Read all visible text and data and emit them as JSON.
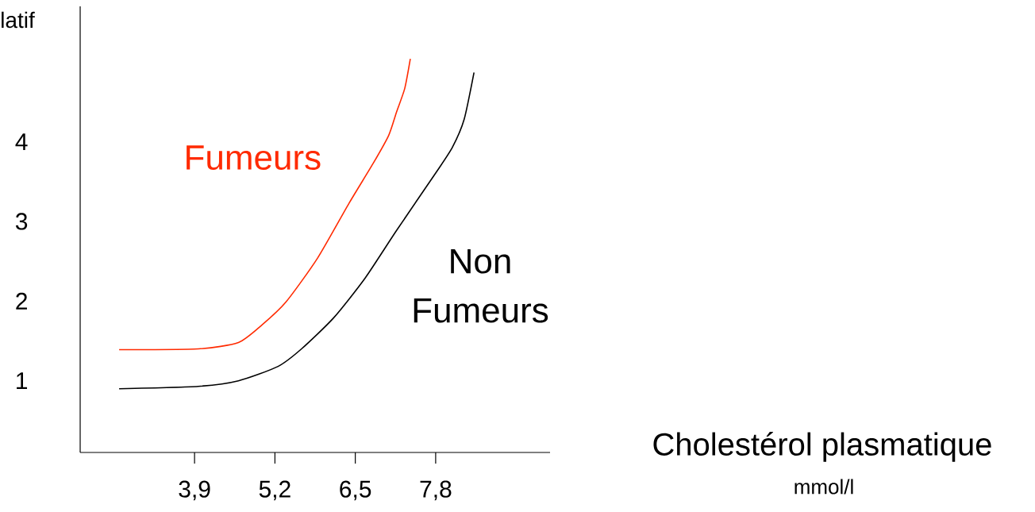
{
  "chart_data": {
    "type": "line",
    "ylabel": "latif",
    "xlabel": "Cholestérol plasmatique",
    "annotations": [
      "mmol/l"
    ],
    "xlim": [
      2.05,
      9.65
    ],
    "ylim": [
      0.1,
      5.7
    ],
    "xticks": [
      {
        "value": 3.9,
        "label": "3,9"
      },
      {
        "value": 5.2,
        "label": "5,2"
      },
      {
        "value": 6.5,
        "label": "6,5"
      },
      {
        "value": 7.8,
        "label": "7,8"
      }
    ],
    "yticks": [
      1,
      2,
      3,
      4
    ],
    "series": [
      {
        "name": "Fumeurs",
        "color": "#ff2a00",
        "x": [
          2.68,
          3.96,
          4.61,
          4.99,
          5.38,
          5.89,
          6.4,
          6.79,
          7.04,
          7.17,
          7.3,
          7.39
        ],
        "values": [
          1.39,
          1.4,
          1.48,
          1.7,
          1.99,
          2.54,
          3.23,
          3.73,
          4.08,
          4.38,
          4.67,
          5.04
        ]
      },
      {
        "name": "Non Fumeurs",
        "color": "#000000",
        "x": [
          2.68,
          3.96,
          4.61,
          5.25,
          5.63,
          6.15,
          6.66,
          7.17,
          7.82,
          8.07,
          8.26,
          8.42
        ],
        "values": [
          0.9,
          0.93,
          1.0,
          1.18,
          1.4,
          1.79,
          2.29,
          2.89,
          3.63,
          3.93,
          4.28,
          4.87
        ]
      }
    ]
  }
}
